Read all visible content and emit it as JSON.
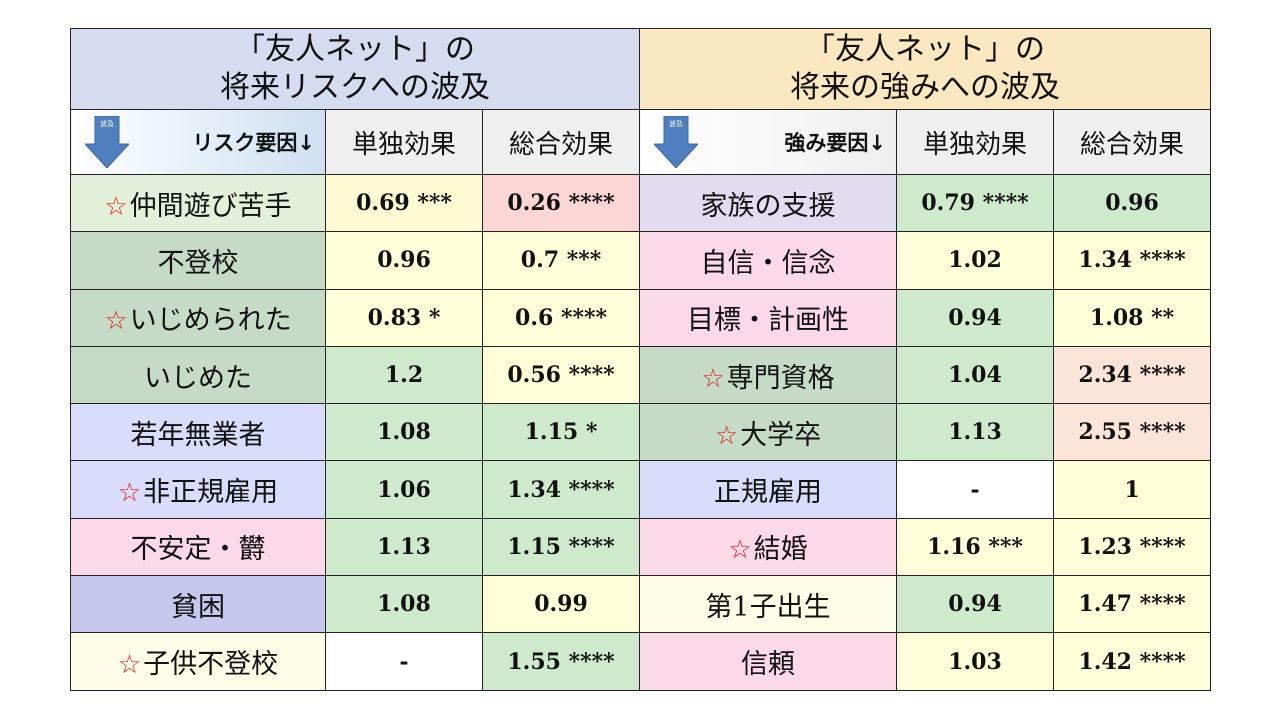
{
  "header": {
    "left_title_line1": "「友人ネット」の",
    "left_title_line2": "将来リスクへの波及",
    "right_title_line1": "「友人ネット」の",
    "right_title_line2": "将来の強みへの波及",
    "risk_factor_label": "リスク要因↓",
    "strength_factor_label": "強み要因↓",
    "single_effect": "単独効果",
    "total_effect": "総合効果",
    "arrow_text": "波及",
    "star_glyph": "☆"
  },
  "colors": {
    "green": "#cfe9cd",
    "yellow": "#fdfbd4",
    "pink": "#fcd5d5",
    "peach": "#fce4d8",
    "sage": "#c6dbc5",
    "light_green": "#e2f0d9",
    "lavender": "#e2dcf0",
    "light_pink": "#fbd9e8",
    "periwinkle": "#d9dcfb",
    "slate_blue": "#c7c6ec",
    "cream": "#fdfde8",
    "white": "#ffffff",
    "light_yellow": "#fefed8"
  },
  "rows": [
    {
      "risk": {
        "label": "仲間遊び苦手",
        "star": true,
        "bg": "light_green"
      },
      "risk_single": {
        "value": "0.69 ***",
        "bg": "yellow"
      },
      "risk_total": {
        "value": "0.26 ****",
        "bg": "pink"
      },
      "strength": {
        "label": "家族の支援",
        "star": false,
        "bg": "lavender"
      },
      "str_single": {
        "value": "0.79 ****",
        "bg": "green"
      },
      "str_total": {
        "value": "0.96",
        "bg": "green"
      }
    },
    {
      "risk": {
        "label": "不登校",
        "star": false,
        "bg": "sage"
      },
      "risk_single": {
        "value": "0.96",
        "bg": "light_yellow"
      },
      "risk_total": {
        "value": "0.7 ***",
        "bg": "light_yellow"
      },
      "strength": {
        "label": "自信・信念",
        "star": false,
        "bg": "light_pink"
      },
      "str_single": {
        "value": "1.02",
        "bg": "light_yellow"
      },
      "str_total": {
        "value": "1.34 ****",
        "bg": "light_yellow"
      }
    },
    {
      "risk": {
        "label": "いじめられた",
        "star": true,
        "bg": "sage"
      },
      "risk_single": {
        "value": "0.83 *",
        "bg": "light_yellow"
      },
      "risk_total": {
        "value": "0.6 ****",
        "bg": "light_yellow"
      },
      "strength": {
        "label": "目標・計画性",
        "star": false,
        "bg": "light_pink"
      },
      "str_single": {
        "value": "0.94",
        "bg": "green"
      },
      "str_total": {
        "value": "1.08 **",
        "bg": "light_yellow"
      }
    },
    {
      "risk": {
        "label": "いじめた",
        "star": false,
        "bg": "sage"
      },
      "risk_single": {
        "value": "1.2",
        "bg": "green"
      },
      "risk_total": {
        "value": "0.56 ****",
        "bg": "light_yellow"
      },
      "strength": {
        "label": "専門資格",
        "star": true,
        "bg": "sage"
      },
      "str_single": {
        "value": "1.04",
        "bg": "green"
      },
      "str_total": {
        "value": "2.34 ****",
        "bg": "peach"
      }
    },
    {
      "risk": {
        "label": "若年無業者",
        "star": false,
        "bg": "periwinkle"
      },
      "risk_single": {
        "value": "1.08",
        "bg": "green"
      },
      "risk_total": {
        "value": "1.15 *",
        "bg": "green"
      },
      "strength": {
        "label": "大学卒",
        "star": true,
        "bg": "sage"
      },
      "str_single": {
        "value": "1.13",
        "bg": "green"
      },
      "str_total": {
        "value": "2.55 ****",
        "bg": "peach"
      }
    },
    {
      "risk": {
        "label": "非正規雇用",
        "star": true,
        "bg": "periwinkle"
      },
      "risk_single": {
        "value": "1.06",
        "bg": "green"
      },
      "risk_total": {
        "value": "1.34 ****",
        "bg": "green"
      },
      "strength": {
        "label": "正規雇用",
        "star": false,
        "bg": "periwinkle"
      },
      "str_single": {
        "value": "-",
        "bg": "white"
      },
      "str_total": {
        "value": "1",
        "bg": "light_yellow"
      }
    },
    {
      "risk": {
        "label": "不安定・欝",
        "star": false,
        "bg": "light_pink"
      },
      "risk_single": {
        "value": "1.13",
        "bg": "green"
      },
      "risk_total": {
        "value": "1.15 ****",
        "bg": "green"
      },
      "strength": {
        "label": "結婚",
        "star": true,
        "bg": "light_pink"
      },
      "str_single": {
        "value": "1.16 ***",
        "bg": "light_yellow"
      },
      "str_total": {
        "value": "1.23 ****",
        "bg": "light_yellow"
      }
    },
    {
      "risk": {
        "label": "貧困",
        "star": false,
        "bg": "slate_blue"
      },
      "risk_single": {
        "value": "1.08",
        "bg": "green"
      },
      "risk_total": {
        "value": "0.99",
        "bg": "light_yellow"
      },
      "strength": {
        "label": "第1子出生",
        "star": false,
        "bg": "cream"
      },
      "str_single": {
        "value": "0.94",
        "bg": "green"
      },
      "str_total": {
        "value": "1.47 ****",
        "bg": "light_yellow"
      }
    },
    {
      "risk": {
        "label": "子供不登校",
        "star": true,
        "bg": "cream"
      },
      "risk_single": {
        "value": "-",
        "bg": "white"
      },
      "risk_total": {
        "value": "1.55 ****",
        "bg": "green"
      },
      "strength": {
        "label": "信頼",
        "star": false,
        "bg": "light_pink"
      },
      "str_single": {
        "value": "1.03",
        "bg": "light_yellow"
      },
      "str_total": {
        "value": "1.42 ****",
        "bg": "light_yellow"
      }
    }
  ]
}
